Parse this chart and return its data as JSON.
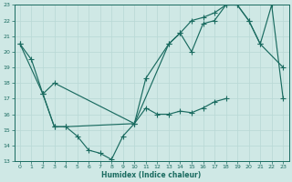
{
  "xlabel": "Humidex (Indice chaleur)",
  "bg_color": "#cfe8e5",
  "grid_color": "#b8d8d5",
  "line_color": "#1a6b60",
  "xlim": [
    -0.5,
    23.5
  ],
  "ylim": [
    13,
    23
  ],
  "xticks": [
    0,
    1,
    2,
    3,
    4,
    5,
    6,
    7,
    8,
    9,
    10,
    11,
    12,
    13,
    14,
    15,
    16,
    17,
    18,
    19,
    20,
    21,
    22,
    23
  ],
  "yticks": [
    13,
    14,
    15,
    16,
    17,
    18,
    19,
    20,
    21,
    22,
    23
  ],
  "line1_x": [
    0,
    1,
    2,
    3,
    4,
    5,
    6,
    7,
    8,
    9,
    10,
    11,
    12,
    13,
    14,
    15,
    16,
    17,
    18
  ],
  "line1_y": [
    20.5,
    19.5,
    17.3,
    15.2,
    15.2,
    14.6,
    13.7,
    13.5,
    13.1,
    14.6,
    15.4,
    16.4,
    16.0,
    16.0,
    16.2,
    16.1,
    16.4,
    16.8,
    17.0
  ],
  "line2_x": [
    0,
    2,
    3,
    10,
    11,
    13,
    14,
    15,
    16,
    17,
    18,
    19,
    20,
    21,
    23
  ],
  "line2_y": [
    20.5,
    17.3,
    18.0,
    15.4,
    18.3,
    20.5,
    21.2,
    20.0,
    21.8,
    22.0,
    23.0,
    23.0,
    22.0,
    20.5,
    19.0
  ],
  "line3_x": [
    2,
    3,
    4,
    10,
    13,
    14,
    15,
    16,
    17,
    18,
    19,
    20,
    21,
    22,
    23
  ],
  "line3_y": [
    17.3,
    15.2,
    15.2,
    15.4,
    20.5,
    21.2,
    22.0,
    22.2,
    22.5,
    23.0,
    23.0,
    22.0,
    20.5,
    23.0,
    17.0
  ]
}
